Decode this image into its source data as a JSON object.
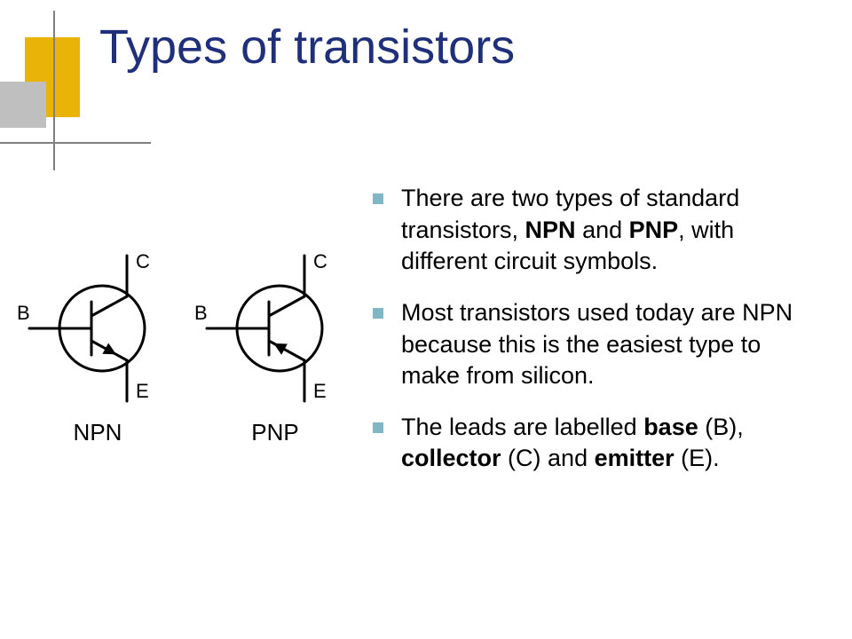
{
  "title": {
    "text": "Types of transistors",
    "color": "#1f2f7a",
    "fontsize": 54
  },
  "decor": {
    "gold": "#eab308",
    "gray": "#bfbfbf",
    "line": "#7f7f7f"
  },
  "bullets": {
    "square_color": "#7fb8c4",
    "fontsize": 27,
    "items": [
      {
        "pre": "There are two types of standard transistors, ",
        "b1": "NPN",
        "mid1": " and ",
        "b2": "PNP",
        "post": ", with different circuit symbols."
      },
      {
        "plain": "Most transistors used today are NPN because this is the easiest type to make from silicon."
      },
      {
        "pre": "The leads are labelled ",
        "b1": "base",
        "mid1": " (B), ",
        "b2": "collector",
        "mid2": " (C) and ",
        "b3": "emitter",
        "post": " (E)."
      }
    ]
  },
  "diagram": {
    "label_font": "Arial",
    "label_fontsize": 26,
    "pin_fontsize": 22,
    "stroke": "#000000",
    "stroke_width": 3,
    "circle_r": 48,
    "transistors": [
      {
        "name": "NPN",
        "labels": {
          "B": "B",
          "C": "C",
          "E": "E"
        },
        "arrow_out": true
      },
      {
        "name": "PNP",
        "labels": {
          "B": "B",
          "C": "C",
          "E": "E"
        },
        "arrow_out": false
      }
    ]
  }
}
